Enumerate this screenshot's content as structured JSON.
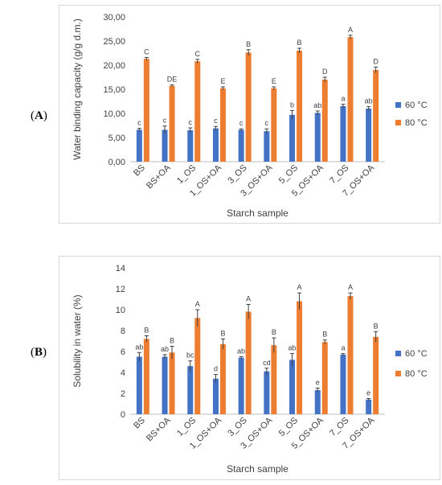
{
  "panels": {
    "a": {
      "label": "A"
    },
    "b": {
      "label": "B"
    }
  },
  "chart_data": [
    {
      "type": "bar",
      "panel": "A",
      "title": "",
      "xlabel": "Starch sample",
      "ylabel": "Water binding capacity (g/g d.m.)",
      "ylim": [
        0,
        30
      ],
      "yticks": [
        "0,00",
        "5,00",
        "10,00",
        "15,00",
        "20,00",
        "25,00",
        "30,00"
      ],
      "grid": false,
      "legend_position": "right",
      "categories": [
        "BS",
        "BS+OA",
        "1_OS",
        "1_OS+OA",
        "3_OS",
        "3_OS+OA",
        "5_OS",
        "5_OS+OA",
        "7_OS",
        "7_OS+OA"
      ],
      "series": [
        {
          "name": "60 °C",
          "color": "#4472C4",
          "values": [
            6.6,
            6.6,
            6.5,
            6.9,
            6.6,
            6.3,
            9.7,
            10.1,
            11.5,
            11.0
          ],
          "errors": [
            0.3,
            0.8,
            0.5,
            0.4,
            0.2,
            0.5,
            0.9,
            0.4,
            0.4,
            0.4
          ],
          "letters": [
            "c",
            "c",
            "c",
            "c",
            "c",
            "c",
            "b",
            "ab",
            "a",
            "ab"
          ]
        },
        {
          "name": "80 °C",
          "color": "#ED7D31",
          "values": [
            21.3,
            15.7,
            20.8,
            15.2,
            22.6,
            15.2,
            23.0,
            17.0,
            25.8,
            19.0
          ],
          "errors": [
            0.3,
            0.2,
            0.4,
            0.3,
            0.6,
            0.3,
            0.5,
            0.5,
            0.4,
            0.6
          ],
          "letters": [
            "C",
            "DE",
            "C",
            "E",
            "B",
            "E",
            "B",
            "D",
            "A",
            "D"
          ]
        }
      ]
    },
    {
      "type": "bar",
      "panel": "B",
      "title": "",
      "xlabel": "Starch sample",
      "ylabel": "Solubility in water (%)",
      "ylim": [
        0,
        14
      ],
      "yticks": [
        "0",
        "2",
        "4",
        "6",
        "8",
        "10",
        "12",
        "14"
      ],
      "grid": false,
      "legend_position": "right",
      "categories": [
        "BS",
        "BS+OA",
        "1_OS",
        "1_OS+OA",
        "3_OS",
        "3_OS+OA",
        "5_OS",
        "5_OS+OA",
        "7_OS",
        "7_OS+OA"
      ],
      "series": [
        {
          "name": "60 °C",
          "color": "#4472C4",
          "values": [
            5.5,
            5.5,
            4.6,
            3.4,
            5.4,
            4.1,
            5.2,
            2.3,
            5.7,
            1.4
          ],
          "errors": [
            0.4,
            0.2,
            0.5,
            0.4,
            0.1,
            0.3,
            0.6,
            0.2,
            0.1,
            0.1
          ],
          "letters": [
            "ab",
            "ab",
            "bc",
            "d",
            "ab",
            "cd",
            "ab",
            "e",
            "a",
            "e"
          ]
        },
        {
          "name": "80 °C",
          "color": "#ED7D31",
          "values": [
            7.2,
            5.9,
            9.2,
            6.7,
            9.8,
            6.6,
            10.8,
            6.9,
            11.3,
            7.4
          ],
          "errors": [
            0.3,
            0.6,
            0.8,
            0.5,
            0.7,
            0.7,
            0.8,
            0.2,
            0.3,
            0.5
          ],
          "letters": [
            "B",
            "B",
            "A",
            "B",
            "A",
            "B",
            "A",
            "B",
            "A",
            "B"
          ]
        }
      ]
    }
  ]
}
